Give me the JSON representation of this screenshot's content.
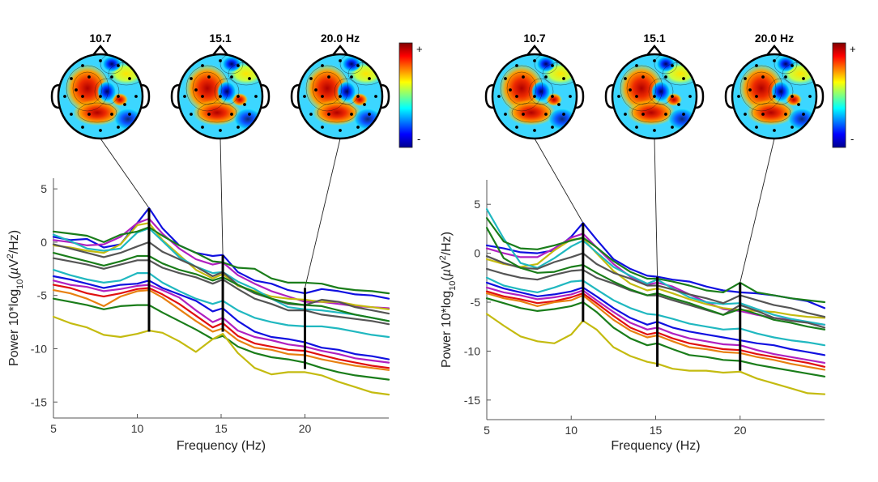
{
  "chart_data": [
    {
      "type": "line",
      "panel": "left",
      "xlabel": "Frequency (Hz)",
      "ylabel_parts": [
        "Power 10*log",
        "10",
        "(",
        "µ",
        "V",
        "2",
        "/Hz)"
      ],
      "xlim": [
        5,
        25
      ],
      "ylim": [
        -16.5,
        6
      ],
      "xticks": [
        5,
        10,
        15,
        20
      ],
      "yticks": [
        -15,
        -10,
        -5,
        0,
        5
      ],
      "scalp_maps": [
        {
          "label": "10.7",
          "freq": 10.7
        },
        {
          "label": "15.1",
          "freq": 15.1
        },
        {
          "label": "20.0 Hz",
          "freq": 20.0
        }
      ],
      "colorbar": {
        "max_label": "+",
        "min_label": "-"
      },
      "freq_markers": [
        {
          "freq": 10.7,
          "ymin": -8.4,
          "ymax": 3.2
        },
        {
          "freq": 15.1,
          "ymin": -8.4,
          "ymax": -1.2
        },
        {
          "freq": 20.0,
          "ymin": -11.9,
          "ymax": -4.3
        }
      ],
      "x": [
        5,
        6,
        7,
        8,
        9,
        10,
        10.7,
        11.5,
        12.5,
        13.5,
        14.5,
        15.1,
        16,
        17,
        18,
        19,
        20,
        21,
        22,
        23,
        24,
        25
      ],
      "series": [
        {
          "color": "#1010e0",
          "values": [
            0.5,
            0.2,
            0.3,
            -0.5,
            -0.2,
            1.8,
            3.2,
            1.3,
            -0.3,
            -1.0,
            -1.3,
            -1.2,
            -2.8,
            -3.6,
            -3.9,
            -4.5,
            -4.8,
            -4.4,
            -4.6,
            -4.9,
            -5.0,
            -5.3
          ]
        },
        {
          "color": "#b020c0",
          "values": [
            0.2,
            0.0,
            -0.3,
            -0.2,
            0.5,
            1.8,
            2.2,
            0.8,
            -0.6,
            -1.6,
            -2.1,
            -1.9,
            -3.1,
            -3.9,
            -4.6,
            -5.1,
            -5.6,
            -5.6,
            -5.8,
            -6.0,
            -6.1,
            -6.2
          ]
        },
        {
          "color": "#c4bb10",
          "values": [
            -0.3,
            -0.5,
            -0.8,
            -1.0,
            -0.2,
            1.6,
            1.8,
            0.2,
            -1.2,
            -2.6,
            -3.4,
            -3.0,
            -4.1,
            -4.6,
            -5.1,
            -5.3,
            -5.4,
            -5.6,
            -5.6,
            -5.9,
            -6.1,
            -6.3
          ]
        },
        {
          "color": "#20b8c0",
          "values": [
            0.7,
            0.1,
            -0.6,
            -0.8,
            -0.6,
            0.9,
            1.3,
            0.1,
            -1.4,
            -2.3,
            -2.9,
            -2.8,
            -3.7,
            -4.4,
            -5.3,
            -6.1,
            -6.3,
            -6.4,
            -6.6,
            -6.8,
            -7.1,
            -7.4
          ]
        },
        {
          "color": "#555555",
          "values": [
            -0.2,
            -0.6,
            -1.0,
            -1.4,
            -1.0,
            -0.4,
            0.0,
            -0.9,
            -1.6,
            -2.3,
            -3.2,
            -2.8,
            -4.0,
            -4.8,
            -5.3,
            -5.8,
            -5.9,
            -5.4,
            -5.6,
            -6.1,
            -6.4,
            -6.7
          ]
        },
        {
          "color": "#1a7d1a",
          "values": [
            1.0,
            0.8,
            0.6,
            0.0,
            0.7,
            1.0,
            1.4,
            0.6,
            -0.3,
            -1.0,
            -1.8,
            -1.9,
            -2.4,
            -2.5,
            -3.4,
            -3.8,
            -3.8,
            -3.9,
            -4.3,
            -4.5,
            -4.6,
            -4.8
          ]
        },
        {
          "color": "#555555",
          "values": [
            -1.5,
            -1.8,
            -2.1,
            -2.5,
            -2.1,
            -1.7,
            -1.7,
            -2.4,
            -2.9,
            -3.3,
            -3.9,
            -3.5,
            -4.4,
            -5.3,
            -5.8,
            -6.4,
            -6.4,
            -6.8,
            -7.0,
            -7.2,
            -7.4,
            -7.7
          ]
        },
        {
          "color": "#1a7d1a",
          "values": [
            -1.0,
            -1.4,
            -1.8,
            -2.2,
            -1.8,
            -1.3,
            -1.3,
            -2.0,
            -2.6,
            -3.0,
            -3.6,
            -3.3,
            -4.0,
            -4.7,
            -5.3,
            -5.7,
            -5.9,
            -6.0,
            -6.4,
            -6.8,
            -7.1,
            -7.4
          ]
        },
        {
          "color": "#20b8c0",
          "values": [
            -2.6,
            -3.1,
            -3.5,
            -3.8,
            -3.6,
            -2.9,
            -2.9,
            -3.8,
            -4.6,
            -5.3,
            -5.8,
            -5.5,
            -6.4,
            -7.1,
            -7.5,
            -7.8,
            -7.9,
            -7.9,
            -8.1,
            -8.4,
            -8.7,
            -8.9
          ]
        },
        {
          "color": "#1010e0",
          "values": [
            -3.2,
            -3.5,
            -3.9,
            -4.3,
            -4.0,
            -3.9,
            -3.6,
            -4.3,
            -4.9,
            -5.5,
            -6.5,
            -6.2,
            -7.4,
            -8.4,
            -8.9,
            -9.1,
            -9.4,
            -9.9,
            -10.1,
            -10.5,
            -10.7,
            -11.0
          ]
        },
        {
          "color": "#b020c0",
          "values": [
            -3.6,
            -4.0,
            -4.2,
            -4.6,
            -4.4,
            -4.1,
            -4.0,
            -4.5,
            -5.2,
            -6.4,
            -7.5,
            -7.1,
            -8.3,
            -8.9,
            -9.2,
            -9.6,
            -9.8,
            -10.2,
            -10.5,
            -10.9,
            -11.1,
            -11.3
          ]
        },
        {
          "color": "#e01010",
          "values": [
            -4.0,
            -4.3,
            -4.8,
            -5.1,
            -4.8,
            -4.4,
            -4.3,
            -4.9,
            -5.8,
            -6.9,
            -8.0,
            -7.6,
            -8.8,
            -9.5,
            -9.8,
            -10.1,
            -10.2,
            -10.6,
            -11.0,
            -11.3,
            -11.6,
            -11.8
          ]
        },
        {
          "color": "#e88010",
          "values": [
            -4.5,
            -4.8,
            -5.3,
            -6.0,
            -5.1,
            -4.6,
            -4.5,
            -5.2,
            -6.3,
            -7.4,
            -8.4,
            -8.1,
            -9.2,
            -9.9,
            -10.1,
            -10.5,
            -10.6,
            -11.0,
            -11.3,
            -11.6,
            -11.8,
            -12.0
          ]
        },
        {
          "color": "#1a7d1a",
          "values": [
            -5.3,
            -5.6,
            -5.9,
            -6.3,
            -6.0,
            -5.9,
            -5.9,
            -6.6,
            -7.4,
            -8.2,
            -9.1,
            -8.8,
            -9.8,
            -10.4,
            -10.8,
            -11.0,
            -11.3,
            -11.8,
            -12.2,
            -12.5,
            -12.7,
            -12.9
          ]
        },
        {
          "color": "#c4bb10",
          "values": [
            -7.0,
            -7.6,
            -8.0,
            -8.7,
            -8.9,
            -8.6,
            -8.3,
            -8.5,
            -9.3,
            -10.3,
            -9.1,
            -8.6,
            -10.4,
            -11.8,
            -12.4,
            -12.2,
            -12.2,
            -12.5,
            -13.1,
            -13.6,
            -14.1,
            -14.3
          ]
        }
      ]
    },
    {
      "type": "line",
      "panel": "right",
      "xlabel": "Frequency (Hz)",
      "ylabel_parts": [
        "Power 10*log",
        "10",
        "(",
        "µ",
        "V",
        "2",
        "/Hz)"
      ],
      "xlim": [
        5,
        25
      ],
      "ylim": [
        -17,
        7.5
      ],
      "xticks": [
        5,
        10,
        15,
        20
      ],
      "yticks": [
        -15,
        -10,
        -5,
        0,
        5
      ],
      "scalp_maps": [
        {
          "label": "10.7",
          "freq": 10.7
        },
        {
          "label": "15.1",
          "freq": 15.1
        },
        {
          "label": "20.0 Hz",
          "freq": 20.0
        }
      ],
      "colorbar": {
        "max_label": "+",
        "min_label": "-"
      },
      "freq_markers": [
        {
          "freq": 10.7,
          "ymin": -7.0,
          "ymax": 3.1
        },
        {
          "freq": 15.1,
          "ymin": -11.6,
          "ymax": -2.4
        },
        {
          "freq": 20.0,
          "ymin": -12.0,
          "ymax": -3.0
        }
      ],
      "x": [
        5,
        6,
        7,
        8,
        9,
        10,
        10.7,
        11.5,
        12.5,
        13.5,
        14.5,
        15.1,
        16,
        17,
        18,
        19,
        20,
        21,
        22,
        23,
        24,
        25
      ],
      "series": [
        {
          "color": "#1010e0",
          "values": [
            0.8,
            0.5,
            0.1,
            0.0,
            0.3,
            1.7,
            3.1,
            1.4,
            -0.6,
            -1.6,
            -2.3,
            -2.4,
            -2.7,
            -2.9,
            -3.4,
            -3.8,
            -4.0,
            -4.1,
            -4.3,
            -4.6,
            -4.9,
            -5.6
          ]
        },
        {
          "color": "#b020c0",
          "values": [
            0.5,
            0.0,
            -0.4,
            -0.4,
            0.5,
            1.6,
            2.0,
            0.6,
            -1.1,
            -2.4,
            -3.2,
            -3.0,
            -3.4,
            -4.2,
            -5.0,
            -5.7,
            -5.9,
            -6.3,
            -6.6,
            -6.8,
            -7.1,
            -7.3
          ]
        },
        {
          "color": "#c4bb10",
          "values": [
            -0.6,
            -1.1,
            -1.4,
            -1.1,
            0.3,
            1.4,
            1.5,
            0.0,
            -1.8,
            -3.1,
            -3.8,
            -3.6,
            -4.1,
            -4.7,
            -5.2,
            -5.6,
            -5.8,
            -5.9,
            -6.0,
            -6.3,
            -6.5,
            -6.6
          ]
        },
        {
          "color": "#20b8c0",
          "values": [
            4.5,
            1.5,
            -1.0,
            -1.5,
            -0.5,
            0.7,
            1.3,
            0.1,
            -1.4,
            -2.3,
            -3.1,
            -2.7,
            -3.6,
            -4.5,
            -5.0,
            -5.2,
            -5.1,
            -5.7,
            -6.3,
            -6.7,
            -7.0,
            -7.3
          ]
        },
        {
          "color": "#555555",
          "values": [
            -0.3,
            -1.0,
            -1.5,
            -1.6,
            -0.9,
            -0.4,
            0.0,
            -1.1,
            -2.0,
            -2.6,
            -3.3,
            -3.3,
            -3.7,
            -4.2,
            -4.6,
            -5.1,
            -4.3,
            -4.8,
            -5.3,
            -5.6,
            -6.1,
            -6.5
          ]
        },
        {
          "color": "#1a7d1a",
          "values": [
            3.6,
            1.2,
            0.5,
            0.4,
            0.8,
            1.3,
            1.6,
            0.6,
            -0.8,
            -1.9,
            -2.6,
            -2.6,
            -2.9,
            -3.3,
            -3.8,
            -4.0,
            -3.0,
            -4.0,
            -4.3,
            -4.6,
            -4.8,
            -5.0
          ]
        },
        {
          "color": "#555555",
          "values": [
            -1.6,
            -2.1,
            -2.5,
            -2.7,
            -2.2,
            -1.8,
            -1.7,
            -2.5,
            -3.1,
            -3.8,
            -4.3,
            -4.3,
            -4.8,
            -5.3,
            -5.8,
            -6.3,
            -5.3,
            -5.9,
            -6.6,
            -6.9,
            -7.1,
            -7.6
          ]
        },
        {
          "color": "#1a7d1a",
          "values": [
            2.6,
            -0.5,
            -1.5,
            -2.0,
            -1.9,
            -1.4,
            -1.2,
            -2.0,
            -2.9,
            -3.7,
            -4.3,
            -4.1,
            -4.6,
            -5.1,
            -5.7,
            -6.3,
            -5.7,
            -6.2,
            -6.8,
            -7.1,
            -7.5,
            -7.8
          ]
        },
        {
          "color": "#20b8c0",
          "values": [
            -2.5,
            -3.3,
            -3.7,
            -4.0,
            -3.5,
            -2.9,
            -2.8,
            -3.7,
            -4.8,
            -5.6,
            -6.2,
            -6.3,
            -6.7,
            -7.2,
            -7.5,
            -7.8,
            -7.7,
            -8.2,
            -8.6,
            -8.9,
            -9.1,
            -9.4
          ]
        },
        {
          "color": "#1010e0",
          "values": [
            -3.0,
            -3.6,
            -4.0,
            -4.4,
            -4.2,
            -3.9,
            -3.5,
            -4.4,
            -5.6,
            -6.6,
            -7.3,
            -7.0,
            -7.6,
            -8.0,
            -8.3,
            -8.6,
            -8.9,
            -9.2,
            -9.4,
            -9.8,
            -10.1,
            -10.4
          ]
        },
        {
          "color": "#b020c0",
          "values": [
            -3.5,
            -4.0,
            -4.3,
            -4.7,
            -4.5,
            -4.2,
            -3.8,
            -4.8,
            -6.0,
            -7.1,
            -7.8,
            -7.6,
            -8.2,
            -8.7,
            -9.0,
            -9.3,
            -9.4,
            -9.9,
            -10.3,
            -10.6,
            -10.9,
            -11.2
          ]
        },
        {
          "color": "#e01010",
          "values": [
            -3.9,
            -4.4,
            -4.7,
            -5.1,
            -4.9,
            -4.5,
            -4.1,
            -5.1,
            -6.4,
            -7.6,
            -8.3,
            -8.1,
            -8.7,
            -9.2,
            -9.5,
            -9.8,
            -9.9,
            -10.3,
            -10.6,
            -10.9,
            -11.2,
            -11.6
          ]
        },
        {
          "color": "#e88010",
          "values": [
            -4.1,
            -4.6,
            -4.9,
            -5.4,
            -5.0,
            -4.8,
            -4.3,
            -5.4,
            -6.8,
            -7.9,
            -8.6,
            -8.4,
            -9.0,
            -9.6,
            -9.8,
            -10.1,
            -10.2,
            -10.6,
            -10.9,
            -11.3,
            -11.6,
            -11.9
          ]
        },
        {
          "color": "#1a7d1a",
          "values": [
            -4.6,
            -5.1,
            -5.6,
            -5.9,
            -5.7,
            -5.4,
            -5.0,
            -6.0,
            -7.6,
            -8.7,
            -9.4,
            -9.2,
            -9.8,
            -10.4,
            -10.6,
            -10.9,
            -11.0,
            -11.4,
            -11.7,
            -12.0,
            -12.3,
            -12.6
          ]
        },
        {
          "color": "#c4bb10",
          "values": [
            -6.2,
            -7.4,
            -8.5,
            -9.0,
            -9.2,
            -8.3,
            -6.9,
            -7.8,
            -9.6,
            -10.5,
            -11.1,
            -11.3,
            -11.8,
            -12.0,
            -12.0,
            -12.2,
            -12.1,
            -12.8,
            -13.3,
            -13.8,
            -14.3,
            -14.4
          ]
        }
      ]
    }
  ]
}
